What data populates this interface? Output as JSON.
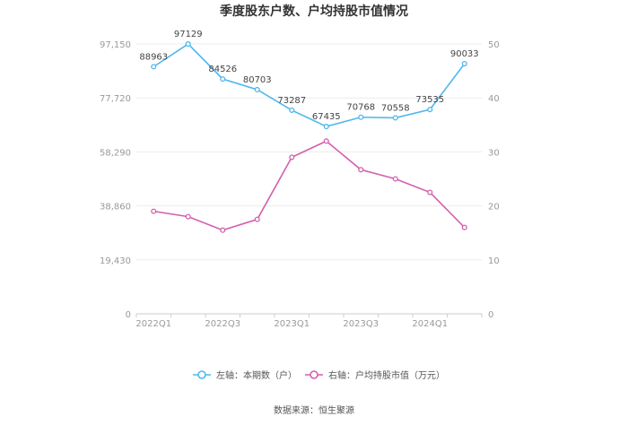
{
  "chart_data": {
    "type": "line",
    "title": "季度股东户数、户均持股市值情况",
    "categories": [
      "2022Q1",
      "2022Q2",
      "2022Q3",
      "2022Q4",
      "2023Q1",
      "2023Q2",
      "2023Q3",
      "2023Q4",
      "2024Q1",
      "2024Q2"
    ],
    "x_tick_labels": [
      "2022Q1",
      "2022Q3",
      "2023Q1",
      "2023Q3",
      "2024Q1"
    ],
    "series": [
      {
        "name": "左轴：本期数（户）",
        "axis": "left",
        "color": "#4db8ec",
        "values": [
          88963,
          97129,
          84526,
          80703,
          73287,
          67435,
          70768,
          70558,
          73535,
          90033
        ],
        "show_labels": true
      },
      {
        "name": "右轴：户均持股市值（万元）",
        "axis": "right",
        "color": "#d45fae",
        "values": [
          19.0,
          18.0,
          15.5,
          17.5,
          29.0,
          32.0,
          26.7,
          25.0,
          22.5,
          16.0
        ],
        "show_labels": false
      }
    ],
    "left_axis": {
      "min": 0,
      "max": 97150,
      "ticks": [
        "0",
        "19,430",
        "38,860",
        "58,290",
        "77,720",
        "97,150"
      ],
      "tick_values": [
        0,
        19430,
        38860,
        58290,
        77720,
        97150
      ]
    },
    "right_axis": {
      "min": 0,
      "max": 50,
      "ticks": [
        "0",
        "10",
        "20",
        "30",
        "40",
        "50"
      ],
      "tick_values": [
        0,
        10,
        20,
        30,
        40,
        50
      ]
    },
    "grid": true,
    "legend_position": "bottom"
  },
  "source": "数据来源：恒生聚源"
}
